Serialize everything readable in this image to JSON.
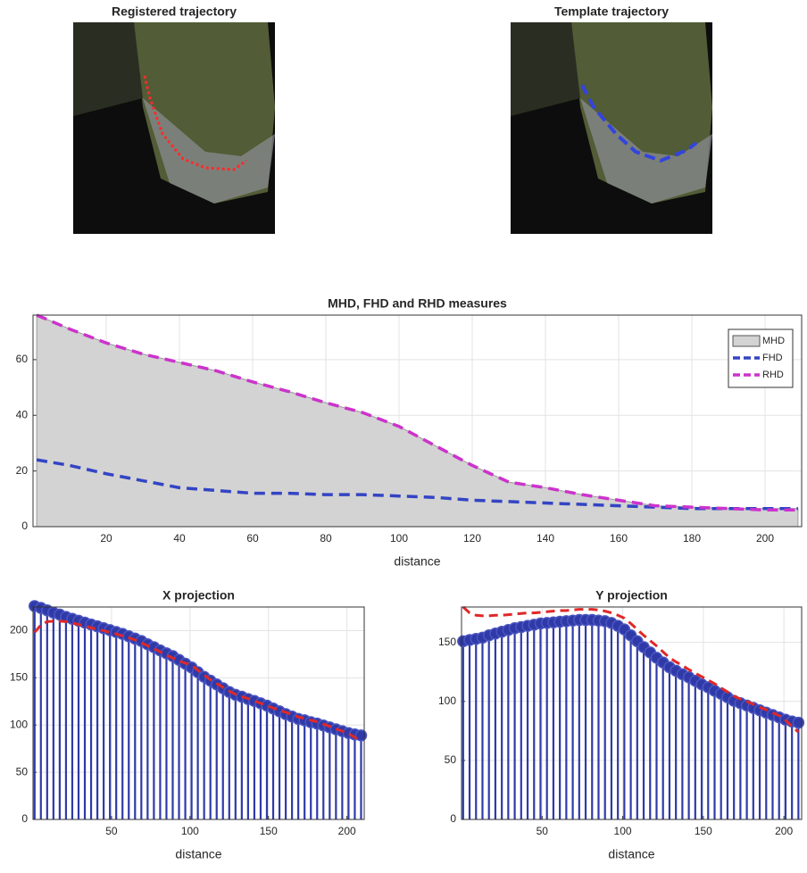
{
  "images": [
    {
      "title": "Registered trajectory"
    },
    {
      "title": "Template trajectory"
    }
  ],
  "chart_data": [
    {
      "type": "line",
      "title": "MHD, FHD and RHD measures",
      "x_label": "distance",
      "x": [
        1,
        10,
        20,
        30,
        40,
        50,
        60,
        70,
        80,
        90,
        100,
        110,
        120,
        130,
        140,
        150,
        160,
        170,
        180,
        190,
        200,
        209
      ],
      "series": [
        {
          "name": "MHD",
          "kind": "area",
          "color": "#d3d3d3",
          "values": [
            76,
            71,
            66,
            62,
            59,
            56,
            52,
            48.5,
            44.5,
            41,
            36,
            29,
            22,
            16,
            14,
            11.5,
            9.5,
            7.5,
            7,
            6.5,
            6.5,
            6.5
          ]
        },
        {
          "name": "FHD",
          "kind": "line",
          "color": "#3344c4",
          "values": [
            24,
            22,
            19,
            16.5,
            14,
            13,
            12,
            12,
            11.5,
            11.5,
            11,
            10.5,
            9.5,
            9,
            8.5,
            8,
            7.5,
            7,
            6.5,
            6.5,
            6.5,
            6.5
          ]
        },
        {
          "name": "RHD",
          "kind": "line",
          "color": "#cc33cc",
          "values": [
            76,
            71,
            66,
            62,
            59,
            56,
            52,
            48.5,
            44.5,
            41,
            36,
            29,
            22,
            16,
            14,
            11.5,
            9.5,
            7.5,
            7,
            6.5,
            6,
            6
          ]
        }
      ],
      "xlim": [
        0,
        210
      ],
      "xticks": [
        20,
        40,
        60,
        80,
        100,
        120,
        140,
        160,
        180,
        200
      ],
      "ylim": [
        0,
        76
      ],
      "yticks": [
        0,
        20,
        40,
        60
      ],
      "grid": true,
      "legend": "upper right"
    },
    {
      "type": "stem",
      "title": "X projection",
      "x_label": "distance",
      "x": [
        1,
        5,
        9,
        13,
        17,
        21,
        25,
        29,
        33,
        37,
        41,
        45,
        49,
        53,
        57,
        61,
        65,
        69,
        73,
        77,
        81,
        85,
        89,
        93,
        97,
        101,
        105,
        109,
        113,
        117,
        121,
        125,
        129,
        133,
        137,
        141,
        145,
        149,
        153,
        157,
        161,
        165,
        169,
        173,
        177,
        181,
        185,
        189,
        193,
        197,
        201,
        205,
        209
      ],
      "series": [
        {
          "kind": "stem",
          "color": "#2f3aa8",
          "values": [
            226,
            224,
            221.5,
            219,
            217,
            214.5,
            212.5,
            210.5,
            208.5,
            206.5,
            204.5,
            202.5,
            200.5,
            198.5,
            196.5,
            194,
            191.5,
            189,
            185.5,
            182.5,
            179,
            176,
            173,
            169,
            165,
            161,
            156,
            151,
            147,
            143,
            139,
            135,
            132,
            130,
            127.5,
            125.5,
            123,
            120.5,
            117.5,
            114.5,
            111.5,
            109,
            106.5,
            105,
            103,
            101.5,
            99.5,
            97.5,
            95.5,
            93.5,
            91.5,
            90,
            89
          ]
        },
        {
          "kind": "line",
          "color": "#e02828",
          "values": [
            198,
            206,
            209.5,
            210,
            210,
            209.5,
            208,
            206.5,
            205,
            203,
            201.5,
            200,
            198,
            196.5,
            194.5,
            192.5,
            190,
            187,
            184,
            181,
            177.5,
            174,
            171,
            168,
            165.5,
            163.5,
            158,
            153,
            148,
            144,
            140,
            136,
            132.5,
            130,
            128,
            125.5,
            123,
            120.5,
            118,
            115.5,
            113.5,
            111,
            108.5,
            107,
            105,
            103.5,
            101,
            98.5,
            96,
            93.5,
            91,
            87,
            82
          ]
        }
      ],
      "xlim": [
        0,
        211
      ],
      "xticks": [
        50,
        100,
        150,
        200
      ],
      "ylim": [
        0,
        225
      ],
      "yticks": [
        0,
        50,
        100,
        150,
        200
      ],
      "grid": true
    },
    {
      "type": "stem",
      "title": "Y projection",
      "x_label": "distance",
      "x": [
        1,
        5,
        9,
        13,
        17,
        21,
        25,
        29,
        33,
        37,
        41,
        45,
        49,
        53,
        57,
        61,
        65,
        69,
        73,
        77,
        81,
        85,
        89,
        93,
        97,
        101,
        105,
        109,
        113,
        117,
        121,
        125,
        129,
        133,
        137,
        141,
        145,
        149,
        153,
        157,
        161,
        165,
        169,
        173,
        177,
        181,
        185,
        189,
        193,
        197,
        201,
        205,
        209
      ],
      "series": [
        {
          "kind": "stem",
          "color": "#2f3aa8",
          "values": [
            151,
            152,
            153,
            154,
            156,
            157.5,
            159,
            160.5,
            162,
            163,
            164,
            165,
            166,
            166.5,
            167,
            167.5,
            168,
            168.5,
            169,
            169,
            169,
            168.5,
            168,
            166.5,
            164,
            161,
            156,
            151,
            146,
            141.5,
            137,
            133,
            129,
            126,
            123,
            120.5,
            117.5,
            114.5,
            112,
            109,
            106.5,
            103.5,
            100.5,
            98.5,
            96.5,
            94.5,
            92.5,
            90.5,
            88.5,
            86.5,
            84.5,
            83,
            82
          ]
        },
        {
          "kind": "line",
          "color": "#e02828",
          "values": [
            180,
            175,
            173,
            172.5,
            172.5,
            173,
            173,
            173.5,
            174,
            174.5,
            175,
            175,
            175.5,
            176,
            176.5,
            177,
            177,
            177.5,
            178,
            178,
            178,
            177.5,
            176.5,
            175,
            173,
            170.5,
            166,
            161,
            156,
            151.5,
            147,
            142,
            137,
            133.5,
            130.5,
            127,
            124,
            121,
            118,
            115,
            111.5,
            108,
            104.5,
            102,
            100,
            97.5,
            95,
            93,
            90.5,
            88,
            84,
            79,
            74
          ]
        }
      ],
      "xlim": [
        0,
        211
      ],
      "xticks": [
        50,
        100,
        150,
        200
      ],
      "ylim": [
        0,
        180
      ],
      "yticks": [
        0,
        50,
        100,
        150
      ],
      "grid": true
    }
  ]
}
